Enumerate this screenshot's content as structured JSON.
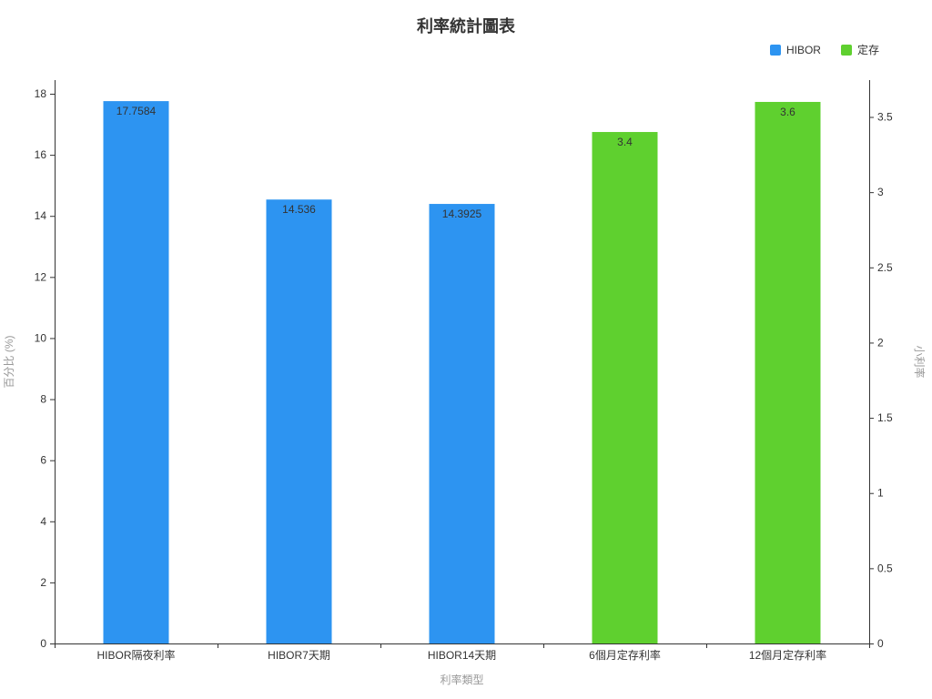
{
  "chart_data": {
    "type": "bar",
    "title": "利率統計圖表",
    "categories": [
      "HIBOR隔夜利率",
      "HIBOR7天期",
      "HIBOR14天期",
      "6個月定存利率",
      "12個月定存利率"
    ],
    "series": [
      {
        "name": "HIBOR",
        "color": "#2d94f1",
        "axis": "left",
        "values": [
          17.7584,
          14.536,
          14.3925,
          null,
          null
        ]
      },
      {
        "name": "定存",
        "color": "#5fd02f",
        "axis": "right",
        "values": [
          null,
          null,
          null,
          3.4,
          3.6
        ]
      }
    ],
    "xlabel": "利率類型",
    "left_axis": {
      "name": "百分比 (%)",
      "min": 0,
      "max": 18,
      "tick_interval": 2
    },
    "right_axis": {
      "name": "小利率",
      "min": 0,
      "max": 3.6543,
      "tick_interval": 0.5,
      "tick_max": 3.5
    },
    "grid": false,
    "legend_position": "top-right",
    "bar_value_labels": [
      "17.7584",
      "14.536",
      "14.3925",
      "3.4",
      "3.6"
    ]
  },
  "colors": {
    "axis_line": "#333333",
    "axis_name": "#999999",
    "text": "#333333",
    "background": "#ffffff"
  }
}
